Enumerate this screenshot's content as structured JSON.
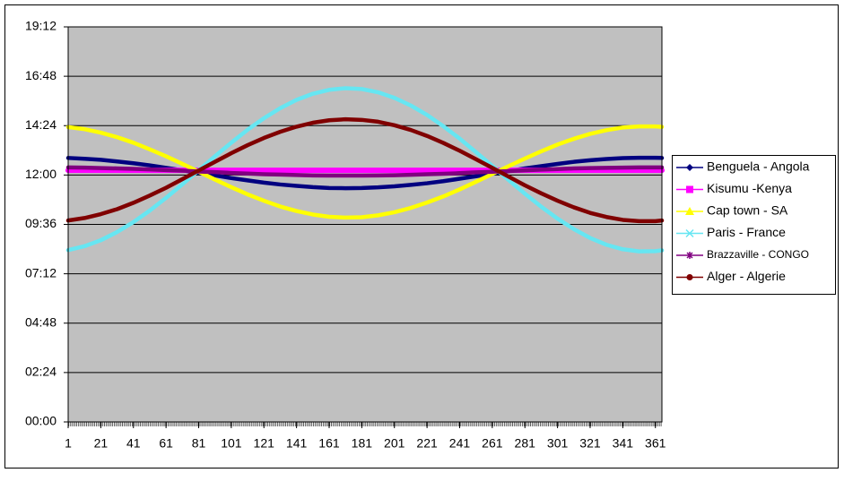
{
  "chart_data": {
    "type": "line",
    "x": [
      1,
      11,
      21,
      31,
      41,
      51,
      61,
      71,
      81,
      91,
      101,
      111,
      121,
      131,
      141,
      151,
      161,
      171,
      181,
      191,
      201,
      211,
      221,
      231,
      241,
      251,
      261,
      271,
      281,
      291,
      301,
      311,
      321,
      331,
      341,
      351,
      361,
      365
    ],
    "xlim": [
      1,
      365
    ],
    "xticks": [
      1,
      21,
      41,
      61,
      81,
      101,
      121,
      141,
      161,
      181,
      201,
      221,
      241,
      261,
      281,
      301,
      321,
      341,
      361
    ],
    "ylim": [
      0,
      19.2
    ],
    "yticks": [
      {
        "value": 0,
        "label": "00:00"
      },
      {
        "value": 2.4,
        "label": "02:24"
      },
      {
        "value": 4.8,
        "label": "04:48"
      },
      {
        "value": 7.2,
        "label": "07:12"
      },
      {
        "value": 9.6,
        "label": "09:36"
      },
      {
        "value": 12,
        "label": "12:00"
      },
      {
        "value": 14.4,
        "label": "14:24"
      },
      {
        "value": 16.8,
        "label": "16:48"
      },
      {
        "value": 19.2,
        "label": "19:12"
      }
    ],
    "grid": true,
    "legend": "right",
    "series": [
      {
        "name": "Benguela - Angola",
        "color": "#000080",
        "values": [
          12.83,
          12.79,
          12.74,
          12.66,
          12.57,
          12.47,
          12.35,
          12.23,
          12.1,
          11.98,
          11.85,
          11.74,
          11.63,
          11.54,
          11.47,
          11.41,
          11.37,
          11.36,
          11.37,
          11.4,
          11.45,
          11.52,
          11.6,
          11.7,
          11.82,
          11.94,
          12.07,
          12.19,
          12.32,
          12.43,
          12.54,
          12.64,
          12.72,
          12.78,
          12.82,
          12.84,
          12.84,
          12.83
        ]
      },
      {
        "name": "Kisumu -Kenya",
        "color": "#ff00ff",
        "values": [
          12.23,
          12.23,
          12.23,
          12.23,
          12.23,
          12.23,
          12.23,
          12.23,
          12.23,
          12.23,
          12.23,
          12.23,
          12.23,
          12.23,
          12.23,
          12.23,
          12.23,
          12.23,
          12.23,
          12.23,
          12.23,
          12.23,
          12.23,
          12.23,
          12.23,
          12.23,
          12.23,
          12.23,
          12.23,
          12.23,
          12.23,
          12.23,
          12.23,
          12.23,
          12.23,
          12.23,
          12.23,
          12.23
        ]
      },
      {
        "name": "Cap town - SA",
        "color": "#ffff00",
        "values": [
          14.33,
          14.23,
          14.06,
          13.84,
          13.57,
          13.25,
          12.91,
          12.54,
          12.16,
          11.78,
          11.41,
          11.06,
          10.75,
          10.47,
          10.25,
          10.08,
          9.97,
          9.93,
          9.95,
          10.04,
          10.19,
          10.4,
          10.66,
          10.96,
          11.3,
          11.67,
          12.05,
          12.43,
          12.8,
          13.15,
          13.48,
          13.76,
          14.0,
          14.18,
          14.31,
          14.36,
          14.36,
          14.34
        ]
      },
      {
        "name": "Paris - France",
        "color": "#66e6f2",
        "values": [
          8.35,
          8.54,
          8.83,
          9.23,
          9.71,
          10.27,
          10.89,
          11.55,
          12.23,
          12.91,
          13.57,
          14.2,
          14.76,
          15.25,
          15.65,
          15.95,
          16.14,
          16.22,
          16.18,
          16.02,
          15.75,
          15.38,
          14.92,
          14.37,
          13.77,
          13.11,
          12.44,
          11.76,
          11.09,
          10.46,
          9.88,
          9.37,
          8.94,
          8.61,
          8.39,
          8.29,
          8.3,
          8.34
        ]
      },
      {
        "name": "Brazzaville - CONGO",
        "color": "#800080",
        "values": [
          12.37,
          12.36,
          12.34,
          12.32,
          12.3,
          12.27,
          12.24,
          12.21,
          12.17,
          12.14,
          12.1,
          12.07,
          12.04,
          12.02,
          12.0,
          11.98,
          11.97,
          11.97,
          11.97,
          11.98,
          11.99,
          12.01,
          12.04,
          12.06,
          12.09,
          12.13,
          12.16,
          12.19,
          12.23,
          12.26,
          12.29,
          12.32,
          12.34,
          12.35,
          12.36,
          12.37,
          12.37,
          12.37
        ]
      },
      {
        "name": "Alger - Algerie",
        "color": "#800000",
        "values": [
          9.79,
          9.91,
          10.1,
          10.34,
          10.65,
          11.0,
          11.38,
          11.8,
          12.22,
          12.64,
          13.06,
          13.45,
          13.8,
          14.1,
          14.35,
          14.54,
          14.66,
          14.71,
          14.68,
          14.59,
          14.42,
          14.19,
          13.9,
          13.56,
          13.18,
          12.77,
          12.35,
          11.92,
          11.5,
          11.11,
          10.75,
          10.43,
          10.16,
          9.96,
          9.82,
          9.76,
          9.76,
          9.79
        ]
      }
    ]
  }
}
